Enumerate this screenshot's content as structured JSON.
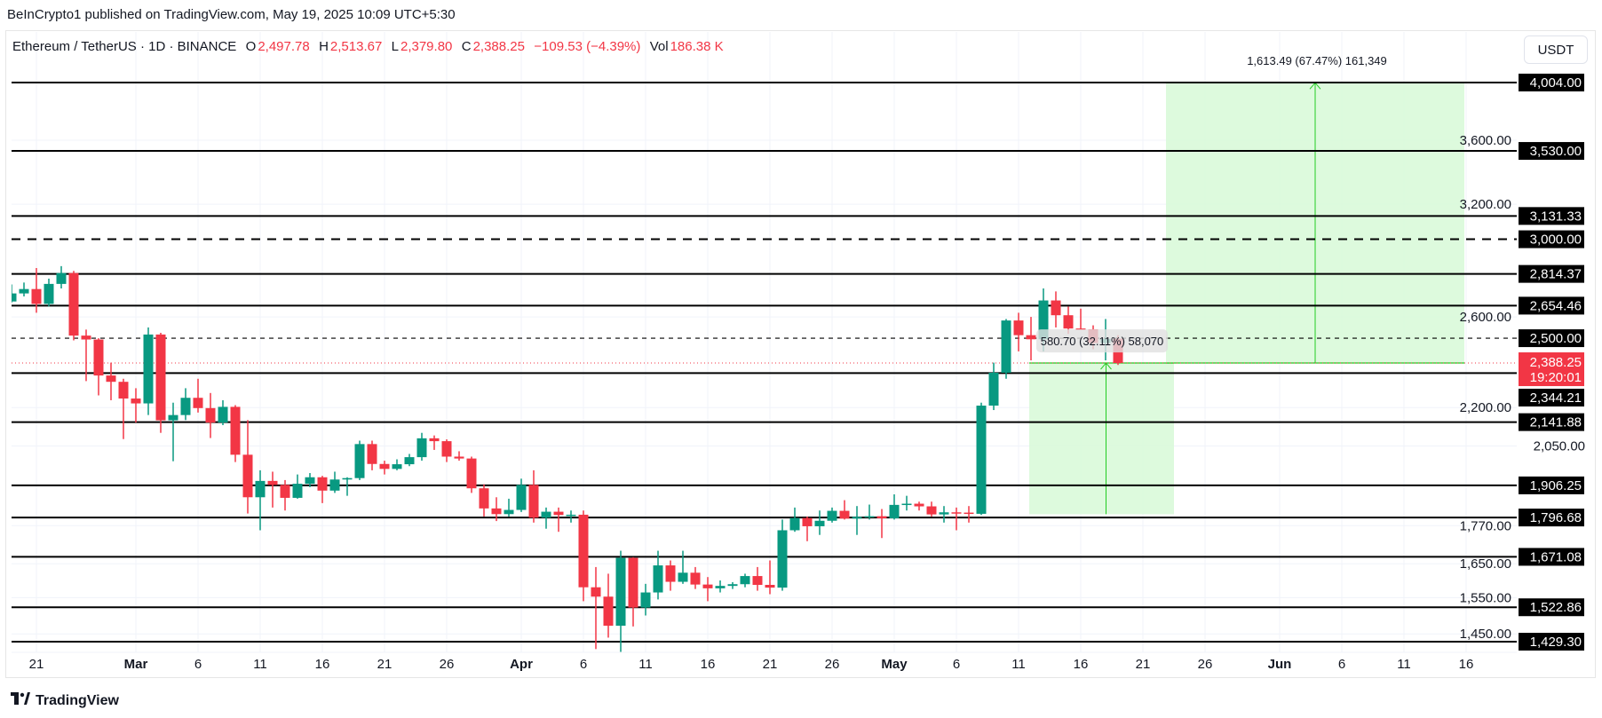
{
  "publish_line": "BeInCrypto1 published on TradingView.com, May 19, 2025 10:09 UTC+5:30",
  "legend": {
    "symbol": "Ethereum / TetherUS · 1D · BINANCE",
    "o_label": "O",
    "o": "2,497.78",
    "h_label": "H",
    "h": "2,513.67",
    "l_label": "L",
    "l": "2,379.80",
    "c_label": "C",
    "c": "2,388.25",
    "change": "−109.53 (−4.39%)",
    "vol_label": "Vol",
    "vol": "186.38 K"
  },
  "currency_button": "USDT",
  "footer_brand": "TradingView",
  "colors": {
    "up": "#089981",
    "down": "#f23645",
    "target_fill": "#d9f9d9",
    "target_line": "#22cc22"
  },
  "chart_data": {
    "type": "candlestick",
    "title": "Ethereum / TetherUS · 1D · BINANCE",
    "yscale": "log",
    "ylim": [
      1429.3,
      4004.0
    ],
    "grid": true,
    "y_ticks": [
      "3,600.00",
      "3,200.00",
      "2,600.00",
      "2,200.00",
      "2,050.00",
      "1,770.00",
      "1,650.00",
      "1,550.00",
      "1,450.00"
    ],
    "y_tick_values": [
      3600,
      3200,
      2600,
      2200,
      2050,
      1770,
      1650,
      1550,
      1450
    ],
    "x_ticks": [
      {
        "label": "21",
        "day": 0
      },
      {
        "label": "Mar",
        "day": 8
      },
      {
        "label": "6",
        "day": 13
      },
      {
        "label": "11",
        "day": 18
      },
      {
        "label": "16",
        "day": 23
      },
      {
        "label": "21",
        "day": 28
      },
      {
        "label": "26",
        "day": 33
      },
      {
        "label": "Apr",
        "day": 39
      },
      {
        "label": "6",
        "day": 44
      },
      {
        "label": "11",
        "day": 49
      },
      {
        "label": "16",
        "day": 54
      },
      {
        "label": "21",
        "day": 59
      },
      {
        "label": "26",
        "day": 64
      },
      {
        "label": "May",
        "day": 69
      },
      {
        "label": "6",
        "day": 74
      },
      {
        "label": "11",
        "day": 79
      },
      {
        "label": "16",
        "day": 84
      },
      {
        "label": "21",
        "day": 89
      },
      {
        "label": "26",
        "day": 94
      },
      {
        "label": "Jun",
        "day": 100
      },
      {
        "label": "6",
        "day": 105
      },
      {
        "label": "11",
        "day": 110
      },
      {
        "label": "16",
        "day": 115
      }
    ],
    "first_day": "2025-02-19",
    "ohlc": [
      [
        2675,
        2760,
        2670,
        2715
      ],
      [
        2715,
        2770,
        2700,
        2737
      ],
      [
        2737,
        2845,
        2620,
        2663
      ],
      [
        2663,
        2790,
        2650,
        2763
      ],
      [
        2763,
        2855,
        2740,
        2819
      ],
      [
        2819,
        2830,
        2490,
        2512
      ],
      [
        2512,
        2540,
        2310,
        2494
      ],
      [
        2494,
        2500,
        2250,
        2334
      ],
      [
        2334,
        2390,
        2230,
        2307
      ],
      [
        2307,
        2320,
        2076,
        2237
      ],
      [
        2237,
        2280,
        2140,
        2217
      ],
      [
        2217,
        2550,
        2170,
        2517
      ],
      [
        2517,
        2525,
        2100,
        2149
      ],
      [
        2149,
        2220,
        1993,
        2170
      ],
      [
        2170,
        2280,
        2150,
        2240
      ],
      [
        2240,
        2320,
        2180,
        2198
      ],
      [
        2198,
        2260,
        2080,
        2140
      ],
      [
        2140,
        2230,
        2130,
        2203
      ],
      [
        2203,
        2210,
        1990,
        2017
      ],
      [
        2017,
        2150,
        1810,
        1865
      ],
      [
        1865,
        1960,
        1755,
        1922
      ],
      [
        1922,
        1955,
        1830,
        1908
      ],
      [
        1908,
        1925,
        1820,
        1863
      ],
      [
        1863,
        1945,
        1860,
        1912
      ],
      [
        1912,
        1950,
        1900,
        1935
      ],
      [
        1935,
        1940,
        1845,
        1888
      ],
      [
        1888,
        1955,
        1880,
        1927
      ],
      [
        1927,
        1935,
        1870,
        1932
      ],
      [
        1932,
        2070,
        1925,
        2057
      ],
      [
        2057,
        2070,
        1960,
        1983
      ],
      [
        1983,
        1995,
        1945,
        1965
      ],
      [
        1965,
        2000,
        1960,
        1982
      ],
      [
        1982,
        2020,
        1975,
        2008
      ],
      [
        2008,
        2100,
        1995,
        2079
      ],
      [
        2079,
        2090,
        2035,
        2068
      ],
      [
        2068,
        2075,
        1990,
        2010
      ],
      [
        2010,
        2030,
        1995,
        2003
      ],
      [
        2003,
        2010,
        1880,
        1896
      ],
      [
        1896,
        1910,
        1800,
        1827
      ],
      [
        1827,
        1865,
        1785,
        1808
      ],
      [
        1808,
        1860,
        1800,
        1822
      ],
      [
        1822,
        1930,
        1815,
        1908
      ],
      [
        1908,
        1960,
        1780,
        1796
      ],
      [
        1796,
        1830,
        1760,
        1816
      ],
      [
        1816,
        1830,
        1750,
        1805
      ],
      [
        1805,
        1820,
        1780,
        1806
      ],
      [
        1806,
        1820,
        1540,
        1580
      ],
      [
        1580,
        1640,
        1410,
        1553
      ],
      [
        1553,
        1620,
        1440,
        1472
      ],
      [
        1472,
        1690,
        1385,
        1668
      ],
      [
        1668,
        1670,
        1470,
        1522
      ],
      [
        1522,
        1590,
        1500,
        1565
      ],
      [
        1565,
        1690,
        1545,
        1645
      ],
      [
        1645,
        1660,
        1570,
        1596
      ],
      [
        1596,
        1690,
        1590,
        1623
      ],
      [
        1623,
        1640,
        1575,
        1588
      ],
      [
        1588,
        1610,
        1540,
        1577
      ],
      [
        1577,
        1600,
        1565,
        1584
      ],
      [
        1584,
        1595,
        1575,
        1589
      ],
      [
        1589,
        1620,
        1580,
        1613
      ],
      [
        1613,
        1640,
        1570,
        1587
      ],
      [
        1587,
        1660,
        1560,
        1579
      ],
      [
        1579,
        1790,
        1570,
        1755
      ],
      [
        1755,
        1830,
        1750,
        1795
      ],
      [
        1795,
        1800,
        1720,
        1768
      ],
      [
        1768,
        1820,
        1740,
        1786
      ],
      [
        1786,
        1830,
        1780,
        1819
      ],
      [
        1819,
        1855,
        1790,
        1793
      ],
      [
        1793,
        1835,
        1740,
        1799
      ],
      [
        1799,
        1840,
        1790,
        1801
      ],
      [
        1801,
        1825,
        1730,
        1794
      ],
      [
        1794,
        1875,
        1790,
        1839
      ],
      [
        1839,
        1870,
        1820,
        1843
      ],
      [
        1843,
        1850,
        1820,
        1834
      ],
      [
        1834,
        1850,
        1800,
        1807
      ],
      [
        1807,
        1835,
        1780,
        1814
      ],
      [
        1814,
        1830,
        1755,
        1813
      ],
      [
        1813,
        1835,
        1780,
        1809
      ],
      [
        1809,
        2220,
        1805,
        2208
      ],
      [
        2208,
        2390,
        2190,
        2346
      ],
      [
        2346,
        2590,
        2320,
        2583
      ],
      [
        2583,
        2620,
        2440,
        2514
      ],
      [
        2514,
        2600,
        2400,
        2495
      ],
      [
        2495,
        2740,
        2440,
        2680
      ],
      [
        2680,
        2725,
        2550,
        2608
      ],
      [
        2608,
        2650,
        2520,
        2545
      ],
      [
        2545,
        2640,
        2540,
        2541
      ],
      [
        2541,
        2560,
        2450,
        2478
      ],
      [
        2478,
        2590,
        2400,
        2497
      ],
      [
        2497.78,
        2513.67,
        2379.8,
        2388.25
      ]
    ],
    "levels": [
      {
        "value": 4004.0,
        "label": "4,004.00",
        "style": "solid"
      },
      {
        "value": 3530.0,
        "label": "3,530.00",
        "style": "solid"
      },
      {
        "value": 3131.33,
        "label": "3,131.33",
        "style": "solid"
      },
      {
        "value": 3000.0,
        "label": "3,000.00",
        "style": "dashed-thick"
      },
      {
        "value": 2814.37,
        "label": "2,814.37",
        "style": "solid"
      },
      {
        "value": 2654.46,
        "label": "2,654.46",
        "style": "solid"
      },
      {
        "value": 2500.0,
        "label": "2,500.00",
        "style": "dashed-thin"
      },
      {
        "value": 2344.21,
        "label": "2,344.21",
        "style": "solid"
      },
      {
        "value": 2141.88,
        "label": "2,141.88",
        "style": "solid"
      },
      {
        "value": 1906.25,
        "label": "1,906.25",
        "style": "solid"
      },
      {
        "value": 1796.68,
        "label": "1,796.68",
        "style": "solid"
      },
      {
        "value": 1671.08,
        "label": "1,671.08",
        "style": "solid"
      },
      {
        "value": 1522.86,
        "label": "1,522.86",
        "style": "solid"
      },
      {
        "value": 1429.3,
        "label": "1,429.30",
        "style": "solid"
      }
    ],
    "current_price": {
      "value": 2388.25,
      "label": "2,388.25",
      "countdown": "19:20:01"
    },
    "measurements": [
      {
        "from_day": 80,
        "to_day": 91,
        "low": 1807.55,
        "high": 2388.25,
        "label": "580.70 (32.11%) 58,070"
      },
      {
        "from_day": 91,
        "to_day": 115,
        "low": 2388.25,
        "high": 4001.74,
        "label": "1,613.49 (67.47%) 161,349"
      }
    ]
  }
}
